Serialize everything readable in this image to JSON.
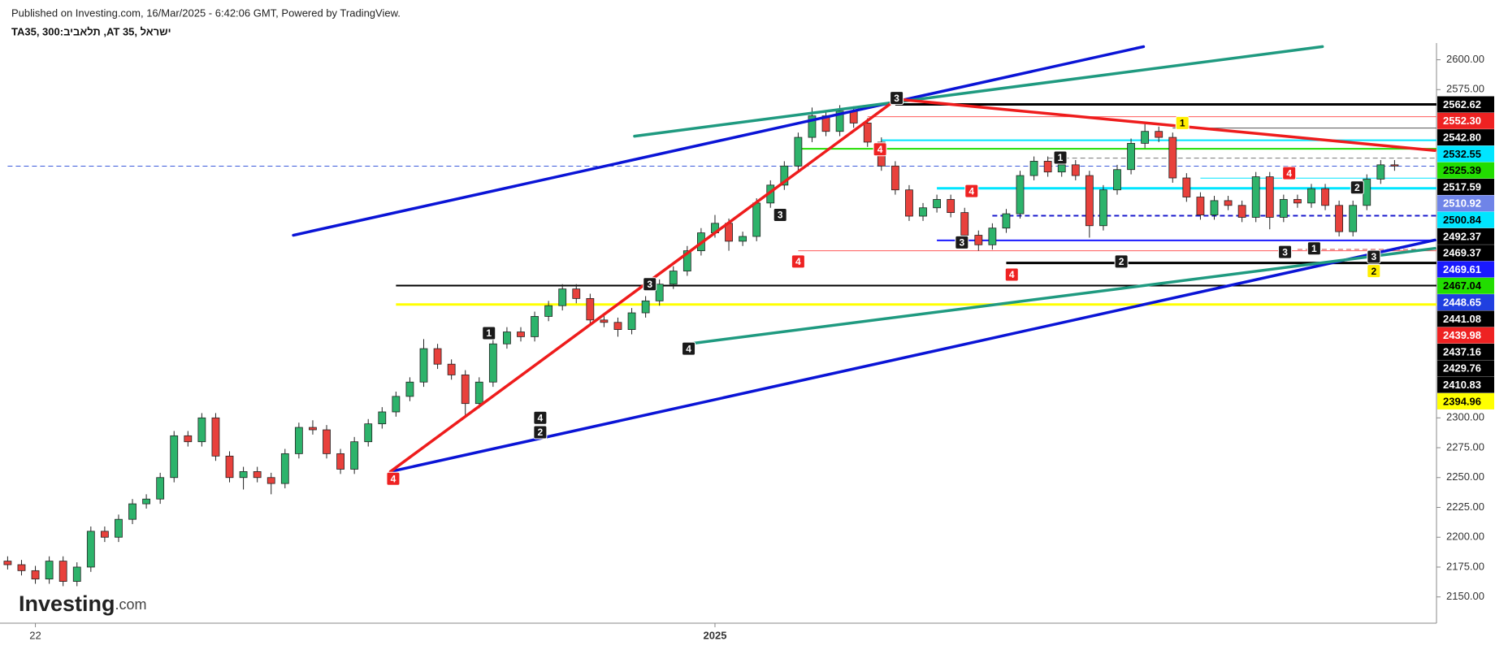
{
  "header": {
    "published": "Published on Investing.com, 16/Mar/2025 - 6:42:06 GMT, Powered by TradingView.",
    "symbol": "TA35, 300:ביבאלת ,AT 35, לארשי",
    "logo": "Investing",
    "logo_suffix": ".com"
  },
  "chart_data": {
    "type": "candlestick",
    "up_color": "#2db36b",
    "down_color": "#e8413c",
    "grid": false,
    "ylim": [
      2128,
      2614
    ],
    "yticks": [
      {
        "value": 2600,
        "label": "2600.00"
      },
      {
        "value": 2575,
        "label": "2575.00"
      },
      {
        "value": 2300,
        "label": "2300.00"
      },
      {
        "value": 2275,
        "label": "2275.00"
      },
      {
        "value": 2250,
        "label": "2250.00"
      },
      {
        "value": 2225,
        "label": "2225.00"
      },
      {
        "value": 2200,
        "label": "2200.00"
      },
      {
        "value": 2175,
        "label": "2175.00"
      },
      {
        "value": 2150,
        "label": "2150.00"
      }
    ],
    "categories": [
      null,
      null,
      "22",
      null,
      null,
      null,
      null,
      null,
      null,
      null,
      null,
      null,
      null,
      null,
      null,
      null,
      null,
      null,
      null,
      null,
      null,
      null,
      null,
      null,
      null,
      null,
      null,
      null,
      null,
      null,
      null,
      null,
      null,
      null,
      null,
      null,
      null,
      null,
      null,
      null,
      null,
      null,
      null,
      null,
      null,
      null,
      null,
      null,
      null,
      null,
      null,
      "2025",
      null,
      null,
      null,
      null,
      null,
      null,
      null,
      null,
      null,
      null,
      null,
      null,
      null,
      null,
      null,
      null,
      null,
      null,
      null,
      null,
      null,
      null,
      null,
      null,
      null,
      null,
      null,
      null,
      null,
      null,
      null,
      null,
      null,
      null,
      null,
      null,
      null,
      null,
      null,
      null,
      null,
      null,
      null,
      null,
      null,
      null,
      null,
      null,
      null
    ],
    "open": [
      2180,
      2177,
      2172,
      2165,
      2180,
      2163,
      2175,
      2205,
      2200,
      2215,
      2228,
      2232,
      2250,
      2285,
      2280,
      2300,
      2268,
      2250,
      2255,
      2250,
      2245,
      2270,
      2292,
      2290,
      2270,
      2257,
      2280,
      2295,
      2305,
      2318,
      2330,
      2358,
      2345,
      2336,
      2312,
      2330,
      2362,
      2372,
      2368,
      2385,
      2394,
      2408,
      2400,
      2382,
      2380,
      2374,
      2388,
      2398,
      2412,
      2423,
      2440,
      2455,
      2463,
      2448,
      2452,
      2480,
      2495,
      2511,
      2535,
      2553,
      2540,
      2557,
      2547,
      2531,
      2511,
      2491,
      2469,
      2476,
      2483,
      2472,
      2453,
      2445,
      2459,
      2471,
      2503,
      2515,
      2506,
      2512,
      2503,
      2461,
      2491,
      2508,
      2530,
      2540,
      2535,
      2501,
      2485,
      2470,
      2482,
      2478,
      2468,
      2502,
      2468,
      2483,
      2480,
      2492,
      2478,
      2456,
      2478,
      2500,
      2512
    ],
    "high": [
      2184,
      2181,
      2176,
      2184,
      2184,
      2179,
      2209,
      2209,
      2219,
      2232,
      2236,
      2254,
      2289,
      2289,
      2304,
      2304,
      2272,
      2259,
      2259,
      2254,
      2274,
      2296,
      2298,
      2294,
      2274,
      2284,
      2299,
      2309,
      2322,
      2334,
      2366,
      2362,
      2349,
      2340,
      2334,
      2366,
      2376,
      2376,
      2389,
      2398,
      2412,
      2412,
      2404,
      2386,
      2384,
      2392,
      2402,
      2416,
      2427,
      2444,
      2459,
      2470,
      2467,
      2456,
      2484,
      2499,
      2515,
      2539,
      2560,
      2557,
      2562,
      2561,
      2551,
      2535,
      2515,
      2495,
      2480,
      2487,
      2487,
      2476,
      2457,
      2463,
      2475,
      2507,
      2519,
      2519,
      2516,
      2516,
      2507,
      2495,
      2512,
      2534,
      2546,
      2544,
      2539,
      2505,
      2489,
      2486,
      2486,
      2482,
      2506,
      2506,
      2487,
      2487,
      2496,
      2496,
      2482,
      2482,
      2504,
      2516,
      2516
    ],
    "low": [
      2173,
      2168,
      2161,
      2161,
      2159,
      2159,
      2171,
      2196,
      2196,
      2211,
      2224,
      2228,
      2246,
      2276,
      2276,
      2264,
      2246,
      2240,
      2246,
      2236,
      2241,
      2266,
      2286,
      2266,
      2253,
      2253,
      2276,
      2291,
      2301,
      2314,
      2326,
      2341,
      2332,
      2302,
      2308,
      2326,
      2358,
      2364,
      2364,
      2381,
      2390,
      2396,
      2378,
      2376,
      2368,
      2370,
      2384,
      2394,
      2408,
      2419,
      2436,
      2451,
      2440,
      2444,
      2448,
      2476,
      2491,
      2507,
      2531,
      2536,
      2536,
      2543,
      2527,
      2507,
      2487,
      2465,
      2465,
      2472,
      2468,
      2449,
      2440,
      2441,
      2455,
      2467,
      2499,
      2502,
      2502,
      2499,
      2451,
      2457,
      2487,
      2504,
      2526,
      2531,
      2497,
      2481,
      2466,
      2466,
      2474,
      2464,
      2464,
      2458,
      2464,
      2476,
      2476,
      2474,
      2452,
      2452,
      2474,
      2496,
      2507
    ],
    "close": [
      2177,
      2172,
      2165,
      2180,
      2163,
      2175,
      2205,
      2200,
      2215,
      2228,
      2232,
      2250,
      2285,
      2280,
      2300,
      2268,
      2250,
      2255,
      2250,
      2245,
      2270,
      2292,
      2290,
      2270,
      2257,
      2280,
      2295,
      2305,
      2318,
      2330,
      2358,
      2345,
      2336,
      2312,
      2330,
      2362,
      2372,
      2368,
      2385,
      2394,
      2408,
      2400,
      2382,
      2380,
      2374,
      2388,
      2398,
      2412,
      2423,
      2440,
      2455,
      2463,
      2448,
      2452,
      2480,
      2495,
      2511,
      2535,
      2553,
      2540,
      2557,
      2547,
      2531,
      2511,
      2491,
      2469,
      2476,
      2483,
      2472,
      2453,
      2445,
      2459,
      2471,
      2503,
      2515,
      2506,
      2512,
      2503,
      2461,
      2491,
      2508,
      2530,
      2540,
      2535,
      2501,
      2485,
      2470,
      2482,
      2478,
      2468,
      2502,
      2468,
      2483,
      2480,
      2492,
      2478,
      2456,
      2478,
      2500,
      2512,
      2511
    ],
    "levels": [
      {
        "value": 2562.62,
        "label": "2562.62",
        "color": "#000000",
        "text_color": "#ffffff",
        "line": {
          "from": 64,
          "color": "#000000",
          "width": 3
        }
      },
      {
        "value": 2552.3,
        "label": "2552.30",
        "color": "#ee2222",
        "text_color": "#ffffff",
        "line": {
          "from": 62,
          "color": "#ff5a5a",
          "width": 1
        }
      },
      {
        "value": 2542.8,
        "label": "2542.80",
        "color": "#000000",
        "text_color": "#ffffff",
        "line": {
          "from": 84,
          "color": "#555555",
          "width": 1
        }
      },
      {
        "value": 2532.55,
        "label": "2532.55",
        "color": "#00e5ff",
        "text_color": "#000000",
        "line": {
          "from": 63,
          "color": "#00e5ff",
          "width": 2
        }
      },
      {
        "value": 2525.39,
        "label": "2525.39",
        "color": "#22dd00",
        "text_color": "#000000",
        "line": {
          "from": 57,
          "color": "#22dd00",
          "width": 2
        }
      },
      {
        "value": 2517.59,
        "label": "2517.59",
        "color": "#000000",
        "text_color": "#ffffff",
        "line": {
          "from": 75,
          "color": "#777777",
          "width": 1,
          "dashed": true
        }
      },
      {
        "value": 2510.92,
        "label": "2510.92",
        "color": "#6f84e8",
        "text_color": "#ffffff",
        "line": {
          "from": 0,
          "color": "#3b5bdb",
          "width": 1,
          "dashed": true
        }
      },
      {
        "value": 2500.84,
        "label": "2500.84",
        "color": "#00e5ff",
        "text_color": "#000000",
        "line": {
          "from": 86,
          "color": "#00e5ff",
          "width": 1
        }
      },
      {
        "value": 2492.37,
        "label": "2492.37",
        "color": "#000000",
        "text_color": "#ffffff",
        "line": {
          "from": 67,
          "color": "#00e5ff",
          "width": 3
        }
      },
      {
        "value": 2469.37,
        "label": "2469.37",
        "color": "#000000",
        "text_color": "#ffffff",
        "line": {
          "from": 71,
          "color": "#1a1acc",
          "width": 2,
          "dashed": true
        }
      },
      {
        "value": 2469.61,
        "label": "2469.61",
        "color": "#1a1aff",
        "text_color": "#ffffff"
      },
      {
        "value": 2467.04,
        "label": "2467.04",
        "color": "#22dd00",
        "text_color": "#000000"
      },
      {
        "value": 2448.65,
        "label": "2448.65",
        "color": "#2040e0",
        "text_color": "#ffffff",
        "line": {
          "from": 67,
          "color": "#1a1aff",
          "width": 2
        }
      },
      {
        "value": 2441.08,
        "label": "2441.08",
        "color": "#000000",
        "text_color": "#ffffff",
        "line": {
          "from": 93,
          "color": "#cc4444",
          "width": 1,
          "dashed": true
        }
      },
      {
        "value": 2439.98,
        "label": "2439.98",
        "color": "#ee2222",
        "text_color": "#ffffff",
        "line": {
          "from": 57,
          "color": "#ff5a5a",
          "width": 1
        }
      },
      {
        "value": 2437.16,
        "label": "2437.16",
        "color": "#000000",
        "text_color": "#ffffff"
      },
      {
        "value": 2429.76,
        "label": "2429.76",
        "color": "#000000",
        "text_color": "#ffffff",
        "line": {
          "from": 72,
          "color": "#000000",
          "width": 3
        }
      },
      {
        "value": 2410.83,
        "label": "2410.83",
        "color": "#000000",
        "text_color": "#ffffff",
        "line": {
          "from": 28,
          "color": "#000000",
          "width": 2
        }
      },
      {
        "value": 2394.96,
        "label": "2394.96",
        "color": "#ffff00",
        "text_color": "#000000",
        "line": {
          "from": 28,
          "color": "#ffff00",
          "width": 3
        }
      }
    ],
    "trendlines": [
      {
        "x1": 20.6,
        "y1": 2453,
        "x2": 81.9,
        "y2": 2611,
        "color": "#0a14d6"
      },
      {
        "x1": 45.2,
        "y1": 2536,
        "x2": 94.8,
        "y2": 2611,
        "color": "#1f9a80"
      },
      {
        "x1": 27.6,
        "y1": 2255,
        "x2": 102.9,
        "y2": 2449,
        "color": "#0a14d6"
      },
      {
        "x1": 49.1,
        "y1": 2362,
        "x2": 102.9,
        "y2": 2442,
        "color": "#1f9a80"
      },
      {
        "x1": 27.6,
        "y1": 2255,
        "x2": 64.1,
        "y2": 2567,
        "color": "#ee1c1c"
      },
      {
        "x1": 64.1,
        "y1": 2567,
        "x2": 102.9,
        "y2": 2524,
        "color": "#ee1c1c"
      }
    ],
    "markers": [
      {
        "label": "4",
        "x": 27.8,
        "y": 2249,
        "color": "#ee2222",
        "text_color": "#ffffff"
      },
      {
        "label": "2",
        "x": 38.4,
        "y": 2288,
        "color": "#1a1a1a",
        "text_color": "#ffffff"
      },
      {
        "label": "4",
        "x": 38.4,
        "y": 2300,
        "color": "#1a1a1a",
        "text_color": "#ffffff"
      },
      {
        "label": "1",
        "x": 34.7,
        "y": 2371,
        "color": "#1a1a1a",
        "text_color": "#ffffff"
      },
      {
        "label": "3",
        "x": 46.3,
        "y": 2412,
        "color": "#1a1a1a",
        "text_color": "#ffffff"
      },
      {
        "label": "4",
        "x": 49.1,
        "y": 2358,
        "color": "#1a1a1a",
        "text_color": "#ffffff"
      },
      {
        "label": "3",
        "x": 55.7,
        "y": 2470,
        "color": "#1a1a1a",
        "text_color": "#ffffff"
      },
      {
        "label": "4",
        "x": 57.0,
        "y": 2431,
        "color": "#ee2222",
        "text_color": "#ffffff"
      },
      {
        "label": "3",
        "x": 64.1,
        "y": 2568,
        "color": "#1a1a1a",
        "text_color": "#ffffff"
      },
      {
        "label": "4",
        "x": 62.9,
        "y": 2525,
        "color": "#ee2222",
        "text_color": "#ffffff"
      },
      {
        "label": "4",
        "x": 69.5,
        "y": 2490,
        "color": "#ee2222",
        "text_color": "#ffffff"
      },
      {
        "label": "3",
        "x": 68.8,
        "y": 2447,
        "color": "#1a1a1a",
        "text_color": "#ffffff"
      },
      {
        "label": "4",
        "x": 72.4,
        "y": 2420,
        "color": "#ee2222",
        "text_color": "#ffffff"
      },
      {
        "label": "1",
        "x": 75.9,
        "y": 2518,
        "color": "#1a1a1a",
        "text_color": "#ffffff"
      },
      {
        "label": "2",
        "x": 80.3,
        "y": 2431,
        "color": "#1a1a1a",
        "text_color": "#ffffff"
      },
      {
        "label": "1",
        "x": 84.7,
        "y": 2547,
        "color": "#ffee00",
        "text_color": "#000000"
      },
      {
        "label": "4",
        "x": 92.4,
        "y": 2505,
        "color": "#ee2222",
        "text_color": "#ffffff"
      },
      {
        "label": "3",
        "x": 92.1,
        "y": 2439,
        "color": "#1a1a1a",
        "text_color": "#ffffff"
      },
      {
        "label": "1",
        "x": 94.2,
        "y": 2442,
        "color": "#1a1a1a",
        "text_color": "#ffffff"
      },
      {
        "label": "2",
        "x": 97.3,
        "y": 2493,
        "color": "#1a1a1a",
        "text_color": "#ffffff"
      },
      {
        "label": "3",
        "x": 98.5,
        "y": 2435,
        "color": "#1a1a1a",
        "text_color": "#ffffff"
      },
      {
        "label": "2",
        "x": 98.5,
        "y": 2423,
        "color": "#ffee00",
        "text_color": "#000000"
      }
    ]
  }
}
